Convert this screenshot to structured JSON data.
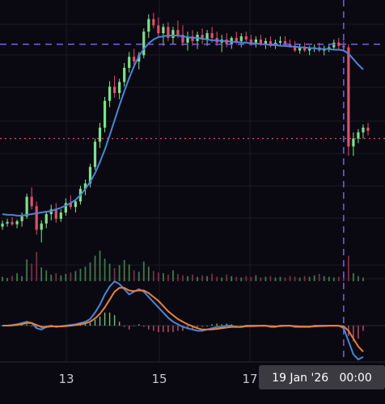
{
  "chart_data": {
    "type": "candlestick",
    "x_tick_labels": [
      "13",
      "15",
      "17"
    ],
    "crosshair_label": "19 Jan '26   00:00",
    "colors": {
      "background": "#0a0911",
      "up": "#7fe08a",
      "down": "#e0506b",
      "ma_line": "#4a86d8",
      "macd_line": "#4a86d8",
      "signal_line": "#e7803c",
      "crosshair": "#7a5cf0",
      "price_line": "#e0506b",
      "grid": "#1b1a24"
    },
    "candles": [
      {
        "o": 240,
        "h": 248,
        "l": 236,
        "c": 244
      },
      {
        "o": 244,
        "h": 250,
        "l": 240,
        "c": 246
      },
      {
        "o": 246,
        "h": 252,
        "l": 241,
        "c": 243
      },
      {
        "o": 243,
        "h": 249,
        "l": 238,
        "c": 247
      },
      {
        "o": 247,
        "h": 258,
        "l": 240,
        "c": 253
      },
      {
        "o": 253,
        "h": 282,
        "l": 250,
        "c": 278
      },
      {
        "o": 278,
        "h": 290,
        "l": 262,
        "c": 266
      },
      {
        "o": 266,
        "h": 272,
        "l": 230,
        "c": 236
      },
      {
        "o": 236,
        "h": 248,
        "l": 220,
        "c": 244
      },
      {
        "o": 244,
        "h": 260,
        "l": 238,
        "c": 256
      },
      {
        "o": 256,
        "h": 268,
        "l": 248,
        "c": 262
      },
      {
        "o": 262,
        "h": 270,
        "l": 245,
        "c": 250
      },
      {
        "o": 250,
        "h": 262,
        "l": 246,
        "c": 258
      },
      {
        "o": 258,
        "h": 276,
        "l": 254,
        "c": 270
      },
      {
        "o": 270,
        "h": 280,
        "l": 262,
        "c": 265
      },
      {
        "o": 265,
        "h": 274,
        "l": 258,
        "c": 272
      },
      {
        "o": 272,
        "h": 292,
        "l": 268,
        "c": 288
      },
      {
        "o": 288,
        "h": 300,
        "l": 280,
        "c": 295
      },
      {
        "o": 295,
        "h": 320,
        "l": 290,
        "c": 316
      },
      {
        "o": 316,
        "h": 352,
        "l": 312,
        "c": 348
      },
      {
        "o": 348,
        "h": 372,
        "l": 340,
        "c": 366
      },
      {
        "o": 366,
        "h": 405,
        "l": 360,
        "c": 400
      },
      {
        "o": 400,
        "h": 425,
        "l": 392,
        "c": 418
      },
      {
        "o": 418,
        "h": 432,
        "l": 404,
        "c": 410
      },
      {
        "o": 410,
        "h": 428,
        "l": 402,
        "c": 424
      },
      {
        "o": 424,
        "h": 448,
        "l": 418,
        "c": 442
      },
      {
        "o": 442,
        "h": 462,
        "l": 436,
        "c": 456
      },
      {
        "o": 456,
        "h": 466,
        "l": 444,
        "c": 450
      },
      {
        "o": 450,
        "h": 462,
        "l": 440,
        "c": 458
      },
      {
        "o": 458,
        "h": 492,
        "l": 454,
        "c": 488
      },
      {
        "o": 488,
        "h": 510,
        "l": 480,
        "c": 504
      },
      {
        "o": 504,
        "h": 512,
        "l": 492,
        "c": 496
      },
      {
        "o": 496,
        "h": 506,
        "l": 482,
        "c": 486
      },
      {
        "o": 486,
        "h": 498,
        "l": 470,
        "c": 494
      },
      {
        "o": 494,
        "h": 500,
        "l": 476,
        "c": 480
      },
      {
        "o": 480,
        "h": 494,
        "l": 472,
        "c": 490
      },
      {
        "o": 490,
        "h": 502,
        "l": 480,
        "c": 484
      },
      {
        "o": 484,
        "h": 496,
        "l": 470,
        "c": 474
      },
      {
        "o": 474,
        "h": 488,
        "l": 464,
        "c": 482
      },
      {
        "o": 482,
        "h": 490,
        "l": 470,
        "c": 476
      },
      {
        "o": 476,
        "h": 488,
        "l": 466,
        "c": 484
      },
      {
        "o": 484,
        "h": 492,
        "l": 472,
        "c": 478
      },
      {
        "o": 478,
        "h": 490,
        "l": 470,
        "c": 486
      },
      {
        "o": 486,
        "h": 494,
        "l": 474,
        "c": 480
      },
      {
        "o": 480,
        "h": 488,
        "l": 470,
        "c": 474
      },
      {
        "o": 474,
        "h": 484,
        "l": 462,
        "c": 478
      },
      {
        "o": 478,
        "h": 486,
        "l": 468,
        "c": 472
      },
      {
        "o": 472,
        "h": 482,
        "l": 466,
        "c": 480
      },
      {
        "o": 480,
        "h": 488,
        "l": 472,
        "c": 476
      },
      {
        "o": 476,
        "h": 486,
        "l": 468,
        "c": 482
      },
      {
        "o": 482,
        "h": 488,
        "l": 474,
        "c": 478
      },
      {
        "o": 478,
        "h": 484,
        "l": 470,
        "c": 474
      },
      {
        "o": 474,
        "h": 482,
        "l": 468,
        "c": 478
      },
      {
        "o": 478,
        "h": 484,
        "l": 470,
        "c": 472
      },
      {
        "o": 472,
        "h": 480,
        "l": 466,
        "c": 476
      },
      {
        "o": 476,
        "h": 482,
        "l": 468,
        "c": 470
      },
      {
        "o": 470,
        "h": 478,
        "l": 466,
        "c": 474
      },
      {
        "o": 474,
        "h": 482,
        "l": 470,
        "c": 476
      },
      {
        "o": 476,
        "h": 482,
        "l": 470,
        "c": 472
      },
      {
        "o": 472,
        "h": 478,
        "l": 468,
        "c": 470
      },
      {
        "o": 470,
        "h": 476,
        "l": 462,
        "c": 464
      },
      {
        "o": 464,
        "h": 472,
        "l": 460,
        "c": 468
      },
      {
        "o": 468,
        "h": 474,
        "l": 462,
        "c": 464
      },
      {
        "o": 464,
        "h": 470,
        "l": 458,
        "c": 466
      },
      {
        "o": 466,
        "h": 472,
        "l": 462,
        "c": 468
      },
      {
        "o": 468,
        "h": 474,
        "l": 462,
        "c": 464
      },
      {
        "o": 464,
        "h": 470,
        "l": 458,
        "c": 466
      },
      {
        "o": 466,
        "h": 472,
        "l": 462,
        "c": 468
      },
      {
        "o": 468,
        "h": 478,
        "l": 464,
        "c": 474
      },
      {
        "o": 474,
        "h": 480,
        "l": 466,
        "c": 470
      },
      {
        "o": 470,
        "h": 476,
        "l": 464,
        "c": 468
      },
      {
        "o": 468,
        "h": 472,
        "l": 330,
        "c": 342
      },
      {
        "o": 342,
        "h": 360,
        "l": 330,
        "c": 352
      },
      {
        "o": 352,
        "h": 364,
        "l": 346,
        "c": 360
      },
      {
        "o": 360,
        "h": 370,
        "l": 352,
        "c": 366
      },
      {
        "o": 366,
        "h": 372,
        "l": 356,
        "c": 362
      }
    ],
    "ma_values": [
      256,
      255,
      255,
      254,
      254,
      255,
      256,
      257,
      258,
      259,
      260,
      262,
      264,
      267,
      270,
      274,
      280,
      288,
      297,
      308,
      322,
      338,
      356,
      375,
      394,
      412,
      429,
      444,
      457,
      466,
      473,
      478,
      481,
      482,
      483,
      483,
      483,
      482,
      481,
      480,
      480,
      479,
      478,
      477,
      477,
      476,
      476,
      475,
      475,
      474,
      474,
      473,
      473,
      472,
      472,
      471,
      471,
      470,
      470,
      469,
      469,
      468,
      468,
      467,
      467,
      466,
      466,
      466,
      465,
      465,
      464,
      460,
      453,
      446,
      440
    ],
    "volumes": [
      12,
      9,
      15,
      22,
      14,
      60,
      48,
      80,
      38,
      30,
      18,
      22,
      16,
      20,
      24,
      28,
      34,
      40,
      52,
      70,
      84,
      62,
      48,
      36,
      44,
      58,
      46,
      30,
      26,
      54,
      40,
      28,
      24,
      22,
      18,
      30,
      20,
      16,
      14,
      18,
      12,
      16,
      14,
      20,
      12,
      10,
      18,
      14,
      12,
      10,
      14,
      12,
      16,
      10,
      12,
      14,
      10,
      12,
      10,
      14,
      12,
      10,
      14,
      12,
      16,
      20,
      14,
      12,
      10,
      12,
      18,
      70,
      22,
      14,
      10
    ],
    "macd": [
      0,
      0,
      0.5,
      1,
      2,
      3,
      2,
      -2,
      -3,
      -1,
      0,
      -1,
      -0.5,
      0,
      0.5,
      1,
      2,
      3,
      5,
      10,
      16,
      24,
      30,
      34,
      32,
      28,
      24,
      26,
      28,
      26,
      22,
      18,
      14,
      10,
      6,
      3,
      1,
      -1,
      -2,
      -3,
      -4,
      -4,
      -3,
      -2,
      -1,
      -1,
      0,
      0,
      -1,
      -1,
      0,
      0,
      0,
      0,
      0,
      -1,
      -1,
      0,
      0,
      0,
      -1,
      -1,
      -1,
      -1,
      0,
      0,
      0,
      0,
      0,
      0,
      -2,
      -12,
      -22,
      -26,
      -24
    ],
    "signal": [
      0,
      0,
      0.2,
      0.6,
      1.2,
      2,
      2,
      0.5,
      -1,
      -1,
      -0.6,
      -0.6,
      -0.6,
      -0.4,
      0,
      0.4,
      1,
      1.8,
      3,
      5.5,
      9,
      14,
      20,
      26,
      29,
      29,
      27,
      26.5,
      27,
      27,
      25,
      22,
      19,
      15,
      11,
      8,
      5,
      3,
      1,
      -0.5,
      -2,
      -3,
      -3,
      -3,
      -2.5,
      -2,
      -1.5,
      -1,
      -1,
      -1,
      -0.5,
      -0.5,
      -0.3,
      -0.2,
      -0.2,
      -0.4,
      -0.6,
      -0.4,
      -0.2,
      -0.2,
      -0.4,
      -0.6,
      -0.7,
      -0.8,
      -0.6,
      -0.4,
      -0.3,
      -0.2,
      -0.1,
      -0.1,
      -0.6,
      -4,
      -10,
      -16,
      -20
    ],
    "price_level_dashed_blue": 472,
    "price_level_dotted_red": 352,
    "crosshair_candle_index": 70,
    "price_range": [
      220,
      520
    ],
    "volume_range": [
      0,
      100
    ],
    "macd_range": [
      -35,
      40
    ]
  }
}
